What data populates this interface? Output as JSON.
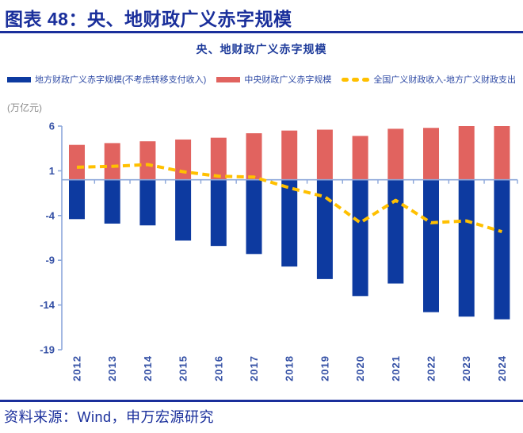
{
  "header": {
    "title": "图表 48：央、地财政广义赤字规模"
  },
  "chart": {
    "title": "央、地财政广义赤字规模",
    "unit_label": "(万亿元)",
    "legend": [
      {
        "label": "地方财政广义赤字规模(不考虑转移支付收入)",
        "type": "bar",
        "color": "#0D3AA0"
      },
      {
        "label": "中央财政广义赤字规模",
        "type": "bar",
        "color": "#E1635F"
      },
      {
        "label": "全国广义财政收入-地方广义财政支出",
        "type": "dashed-line",
        "color": "#FFC000"
      }
    ]
  },
  "chart_data": {
    "type": "bar",
    "title": "央、地财政广义赤字规模",
    "categories": [
      "2012",
      "2013",
      "2014",
      "2015",
      "2016",
      "2017",
      "2018",
      "2019",
      "2020",
      "2021",
      "2022",
      "2023",
      "2024"
    ],
    "series": [
      {
        "name": "地方财政广义赤字规模(不考虑转移支付收入)",
        "type": "bar",
        "color": "#0D3AA0",
        "values": [
          -4.4,
          -4.9,
          -5.1,
          -6.8,
          -7.4,
          -8.3,
          -9.7,
          -11.1,
          -13.0,
          -11.6,
          -14.8,
          -15.3,
          -15.6
        ]
      },
      {
        "name": "中央财政广义赤字规模",
        "type": "bar",
        "color": "#E1635F",
        "values": [
          3.9,
          4.1,
          4.3,
          4.5,
          4.7,
          5.2,
          5.5,
          5.6,
          4.9,
          5.7,
          5.8,
          6.0,
          6.0
        ]
      },
      {
        "name": "全国广义财政收入-地方广义财政支出",
        "type": "line",
        "style": "dashed",
        "color": "#FFC000",
        "values": [
          1.4,
          1.5,
          1.7,
          0.9,
          0.4,
          0.3,
          -0.9,
          -1.9,
          -4.8,
          -2.3,
          -4.8,
          -4.6,
          -5.8
        ]
      }
    ],
    "xlabel": "",
    "ylabel": "(万亿元)",
    "ylim": [
      -19,
      6
    ],
    "yticks": [
      6,
      1,
      -4,
      -9,
      -14,
      -19
    ],
    "grid": false,
    "legend_position": "top"
  },
  "colors": {
    "navy": "#1A2F9B",
    "axis_line": "#8CA7DA",
    "tick_text": "#3450A5",
    "unit_text": "#8C8C8C"
  },
  "source": {
    "text": "资料来源：Wind，申万宏源研究"
  }
}
